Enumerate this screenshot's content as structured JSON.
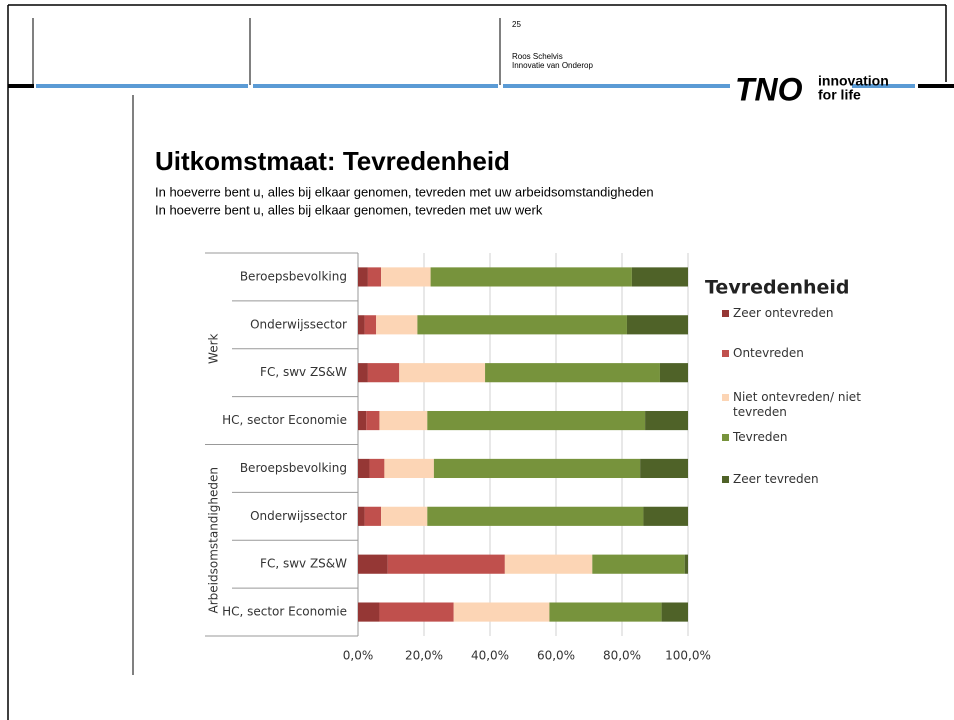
{
  "header": {
    "page": "25",
    "author": "Roos Schelvis",
    "project": "Innovatie van Onderop",
    "logo": "TNO",
    "tagline1": "innovation",
    "tagline2": "for life"
  },
  "chart_data": {
    "type": "stacked-barh",
    "title": "Uitkomstmaat: Tevredenheid",
    "subtitles": [
      "In hoeverre bent u, alles bij elkaar genomen, tevreden met uw arbeidsomstandigheden",
      "In hoeverre bent u, alles bij elkaar genomen, tevreden met uw werk"
    ],
    "legend_title": "Tevredenheid",
    "groups": [
      "Werk",
      "Arbeidsomstandigheden"
    ],
    "categories": [
      "Beroepsbevolking",
      "Onderwijssector",
      "FC, swv ZS&W",
      "HC, sector Economie",
      "Beroepsbevolking",
      "Onderwijssector",
      "FC, swv ZS&W",
      "HC, sector Economie"
    ],
    "series": [
      {
        "name": "Zeer ontevreden",
        "color": "#953735",
        "values": [
          3,
          2,
          3,
          2.5,
          3.5,
          2,
          9,
          6.5
        ]
      },
      {
        "name": "Ontevreden",
        "color": "#c0504d",
        "values": [
          4,
          3.5,
          9.5,
          4,
          4.5,
          5,
          35.5,
          22.5
        ]
      },
      {
        "name": "Niet ontevreden/ niet tevreden",
        "color": "#fcd5b5",
        "values": [
          15,
          12.5,
          26,
          14.5,
          15,
          14,
          26.5,
          29
        ]
      },
      {
        "name": "Tevreden",
        "color": "#77933c",
        "values": [
          61,
          63.5,
          53,
          66,
          62.5,
          65.5,
          28,
          34
        ]
      },
      {
        "name": "Zeer tevreden",
        "color": "#4f6228",
        "values": [
          17,
          18.5,
          8.5,
          13,
          14.5,
          13.5,
          1,
          8
        ]
      }
    ],
    "xlim": [
      0,
      100
    ],
    "xticks": [
      {
        "value": 0,
        "label": "0,0%"
      },
      {
        "value": 20,
        "label": "20,0%"
      },
      {
        "value": 40,
        "label": "40,0%"
      },
      {
        "value": 60,
        "label": "60,0%"
      },
      {
        "value": 80,
        "label": "80,0%"
      },
      {
        "value": 100,
        "label": "100,0%"
      }
    ],
    "grid": true
  }
}
